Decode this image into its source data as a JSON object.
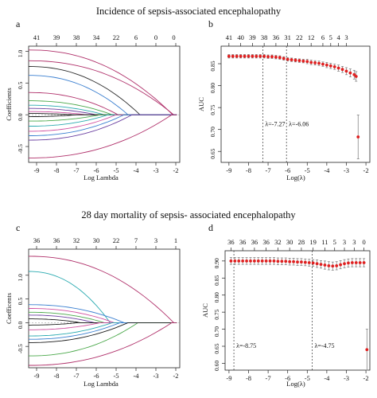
{
  "figure": {
    "title_top": "Incidence of sepsis-associated encephalopathy",
    "title_bottom": "28 day mortality of sepsis- associated encephalopathy"
  },
  "chart_data": [
    {
      "panel": "a",
      "type": "line",
      "xlabel": "Log Lambda",
      "ylabel": "Coefficients",
      "xlim": [
        -9.4,
        -1.8
      ],
      "ylim": [
        -0.75,
        1.08
      ],
      "xticks": [
        -9,
        -8,
        -7,
        -6,
        -5,
        -4,
        -3,
        -2
      ],
      "yticks": [
        -0.5,
        0.0,
        0.5,
        1.0
      ],
      "ytick_labels": [
        "-0.5",
        "0.0",
        "0.5",
        "1.0"
      ],
      "top_axis_x": [
        -9,
        -8,
        -7,
        -6,
        -5,
        -4,
        -3,
        -2
      ],
      "top_axis_labels": [
        "41",
        "39",
        "38",
        "34",
        "22",
        "6",
        "0",
        ""
      ],
      "top_axis_extra": [
        {
          "x": -2.1,
          "label": "0"
        }
      ],
      "paths": [
        {
          "color": "#b0306a",
          "y0": 1.02,
          "zero_at": -2.15
        },
        {
          "color": "#b0306a",
          "y0": 0.85,
          "zero_at": -2.1
        },
        {
          "color": "#2b2b2b",
          "y0": 0.76,
          "zero_at": -3.8
        },
        {
          "color": "#3a7fd0",
          "y0": 0.62,
          "zero_at": -4.4
        },
        {
          "color": "#b0306a",
          "y0": 0.35,
          "zero_at": -4.9
        },
        {
          "color": "#4aa84a",
          "y0": 0.22,
          "zero_at": -5.2
        },
        {
          "color": "#2aaab0",
          "y0": 0.15,
          "zero_at": -5.6
        },
        {
          "color": "#6a3fa0",
          "y0": 0.1,
          "zero_at": -6.0
        },
        {
          "color": "#d04fa0",
          "y0": 0.05,
          "zero_at": -6.5
        },
        {
          "color": "#1a1a1a",
          "y0": 0.02,
          "zero_at": -7.2
        },
        {
          "color": "#1a1a1a",
          "y0": -0.03,
          "zero_at": -7.0
        },
        {
          "color": "#4aa84a",
          "y0": -0.1,
          "zero_at": -5.8
        },
        {
          "color": "#2aaab0",
          "y0": -0.18,
          "zero_at": -5.4
        },
        {
          "color": "#d04fa0",
          "y0": -0.26,
          "zero_at": -5.0
        },
        {
          "color": "#3a7fd0",
          "y0": -0.33,
          "zero_at": -4.6
        },
        {
          "color": "#6a3fa0",
          "y0": -0.4,
          "zero_at": -4.2
        },
        {
          "color": "#b0306a",
          "y0": -0.68,
          "zero_at": -2.2
        }
      ]
    },
    {
      "panel": "b",
      "type": "scatter",
      "xlabel": "Log(λ)",
      "ylabel": "AUC",
      "xlim": [
        -9.4,
        -1.8
      ],
      "ylim": [
        0.625,
        0.89
      ],
      "xticks": [
        -9,
        -8,
        -7,
        -6,
        -5,
        -4,
        -3,
        -2
      ],
      "yticks": [
        0.65,
        0.7,
        0.75,
        0.8,
        0.85
      ],
      "ytick_labels": [
        "0.65",
        "0.70",
        "0.75",
        "0.80",
        "0.85"
      ],
      "top_axis_x": [
        -9,
        -8.4,
        -7.8,
        -7.2,
        -6.6,
        -6.0,
        -5.4,
        -4.8,
        -4.2,
        -3.8,
        -3.4,
        -3.0
      ],
      "top_axis_labels": [
        "41",
        "40",
        "39",
        "38",
        "36",
        "31",
        "22",
        "12",
        "6",
        "5",
        "4",
        "3"
      ],
      "ref_lines": [
        -7.27,
        -6.06
      ],
      "annotations": [
        "λ=-7.27",
        "λ=-6.06"
      ],
      "x": [
        -9.0,
        -8.8,
        -8.6,
        -8.4,
        -8.2,
        -8.0,
        -7.8,
        -7.6,
        -7.4,
        -7.2,
        -7.0,
        -6.8,
        -6.6,
        -6.4,
        -6.2,
        -6.0,
        -5.8,
        -5.6,
        -5.4,
        -5.2,
        -5.0,
        -4.8,
        -4.6,
        -4.4,
        -4.2,
        -4.0,
        -3.8,
        -3.6,
        -3.4,
        -3.2,
        -3.0,
        -2.8,
        -2.6,
        -2.5,
        -2.4
      ],
      "y": [
        0.867,
        0.867,
        0.867,
        0.867,
        0.867,
        0.867,
        0.867,
        0.867,
        0.867,
        0.867,
        0.866,
        0.866,
        0.865,
        0.864,
        0.862,
        0.86,
        0.859,
        0.858,
        0.857,
        0.856,
        0.855,
        0.853,
        0.852,
        0.851,
        0.849,
        0.847,
        0.845,
        0.843,
        0.84,
        0.837,
        0.833,
        0.829,
        0.825,
        0.821,
        0.683
      ],
      "err": [
        0.004,
        0.004,
        0.004,
        0.004,
        0.004,
        0.004,
        0.004,
        0.004,
        0.004,
        0.004,
        0.004,
        0.004,
        0.004,
        0.004,
        0.004,
        0.004,
        0.004,
        0.004,
        0.004,
        0.004,
        0.005,
        0.005,
        0.005,
        0.005,
        0.005,
        0.006,
        0.006,
        0.006,
        0.007,
        0.007,
        0.008,
        0.009,
        0.01,
        0.011,
        0.05
      ]
    },
    {
      "panel": "c",
      "type": "line",
      "xlabel": "Log Lambda",
      "ylabel": "Coefficents",
      "xlim": [
        -9.4,
        -1.8
      ],
      "ylim": [
        -0.95,
        1.55
      ],
      "xticks": [
        -9,
        -8,
        -7,
        -6,
        -5,
        -4,
        -3,
        -2
      ],
      "yticks": [
        -0.5,
        0.0,
        0.5,
        1.0
      ],
      "ytick_labels": [
        "-0.5",
        "0.0",
        "0.5",
        "1.0"
      ],
      "top_axis_x": [
        -9,
        -8,
        -7,
        -6,
        -5,
        -4,
        -3,
        -2
      ],
      "top_axis_labels": [
        "36",
        "36",
        "32",
        "30",
        "22",
        "7",
        "3",
        "1"
      ],
      "paths": [
        {
          "color": "#b0306a",
          "y0": 1.4,
          "zero_at": -2.1
        },
        {
          "color": "#2aaab0",
          "y0": 1.08,
          "zero_at": -5.3
        },
        {
          "color": "#3a7fd0",
          "y0": 0.38,
          "zero_at": -4.6
        },
        {
          "color": "#d04fa0",
          "y0": 0.3,
          "zero_at": -5.1
        },
        {
          "color": "#4aa84a",
          "y0": 0.22,
          "zero_at": -5.6
        },
        {
          "color": "#6a3fa0",
          "y0": 0.16,
          "zero_at": -6.1
        },
        {
          "color": "#1a1a1a",
          "y0": 0.08,
          "zero_at": -6.8
        },
        {
          "color": "#1a1a1a",
          "y0": -0.05,
          "zero_at": -6.9
        },
        {
          "color": "#d04fa0",
          "y0": -0.15,
          "zero_at": -5.8
        },
        {
          "color": "#2aaab0",
          "y0": -0.28,
          "zero_at": -5.2
        },
        {
          "color": "#3a7fd0",
          "y0": -0.35,
          "zero_at": -4.8
        },
        {
          "color": "#4aa84a",
          "y0": -0.7,
          "zero_at": -3.9
        },
        {
          "color": "#1a1a1a",
          "y0": -0.42,
          "zero_at": -4.4
        },
        {
          "color": "#b0306a",
          "y0": -0.9,
          "zero_at": -2.2
        }
      ]
    },
    {
      "panel": "d",
      "type": "scatter",
      "xlabel": "Log(λ)",
      "ylabel": "AUC",
      "xlim": [
        -9.2,
        -1.8
      ],
      "ylim": [
        0.58,
        0.93
      ],
      "xticks": [
        -9,
        -8,
        -7,
        -6,
        -5,
        -4,
        -3,
        -2
      ],
      "yticks": [
        0.6,
        0.65,
        0.7,
        0.75,
        0.8,
        0.85,
        0.9
      ],
      "ytick_labels": [
        "0.60",
        "0.65",
        "0.70",
        "0.75",
        "0.80",
        "0.85",
        "0.90"
      ],
      "top_axis_x": [
        -8.9,
        -8.3,
        -7.7,
        -7.1,
        -6.5,
        -5.9,
        -5.3,
        -4.7,
        -4.1,
        -3.6,
        -3.1,
        -2.6,
        -2.1
      ],
      "top_axis_labels": [
        "36",
        "36",
        "36",
        "36",
        "32",
        "30",
        "28",
        "19",
        "11",
        "5",
        "3",
        "3",
        "0"
      ],
      "ref_lines": [
        -8.75,
        -4.75
      ],
      "annotations": [
        "λ=-8.75",
        "λ=-4.75"
      ],
      "x": [
        -8.9,
        -8.7,
        -8.5,
        -8.3,
        -8.1,
        -7.9,
        -7.7,
        -7.5,
        -7.3,
        -7.1,
        -6.9,
        -6.7,
        -6.5,
        -6.3,
        -6.1,
        -5.9,
        -5.7,
        -5.5,
        -5.3,
        -5.1,
        -4.9,
        -4.7,
        -4.5,
        -4.3,
        -4.1,
        -3.9,
        -3.7,
        -3.5,
        -3.3,
        -3.1,
        -2.9,
        -2.7,
        -2.5,
        -2.3,
        -2.1,
        -1.95
      ],
      "y": [
        0.9,
        0.9,
        0.9,
        0.9,
        0.9,
        0.9,
        0.9,
        0.9,
        0.9,
        0.9,
        0.9,
        0.9,
        0.899,
        0.899,
        0.899,
        0.898,
        0.898,
        0.897,
        0.897,
        0.896,
        0.895,
        0.894,
        0.892,
        0.89,
        0.888,
        0.886,
        0.885,
        0.886,
        0.889,
        0.892,
        0.894,
        0.895,
        0.895,
        0.895,
        0.895,
        0.64
      ],
      "err": [
        0.01,
        0.01,
        0.01,
        0.01,
        0.01,
        0.01,
        0.01,
        0.01,
        0.01,
        0.01,
        0.01,
        0.01,
        0.01,
        0.01,
        0.01,
        0.01,
        0.01,
        0.01,
        0.01,
        0.01,
        0.01,
        0.01,
        0.011,
        0.011,
        0.012,
        0.012,
        0.012,
        0.012,
        0.012,
        0.012,
        0.012,
        0.012,
        0.012,
        0.012,
        0.012,
        0.06
      ]
    }
  ]
}
